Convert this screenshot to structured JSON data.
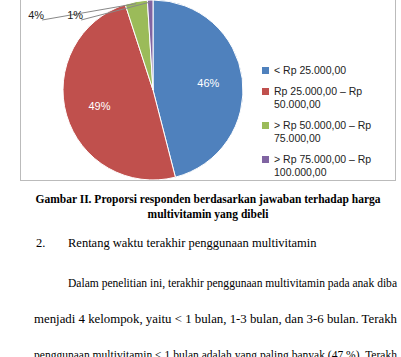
{
  "chart_data": {
    "type": "pie",
    "categories": [
      "< Rp 25.000,00",
      "Rp 25.000,00 – Rp 50.000,00",
      "> Rp 50.000,00 – Rp 75.000,00",
      "> Rp 75.000,00 – Rp 100.000,00"
    ],
    "values": [
      46,
      49,
      4,
      1
    ],
    "value_labels": [
      "46%",
      "49%",
      "4%",
      "1%"
    ],
    "colors": [
      "#4f81bd",
      "#c0504d",
      "#9bbb59",
      "#8064a2"
    ],
    "data_labels": true,
    "legend": "right"
  },
  "caption": [
    "Gambar II. Proporsi responden berdasarkan jawaban terhadap harga",
    "multivitamin yang dibeli"
  ],
  "section": {
    "number": "2.",
    "title": "Rentang waktu terakhir penggunaan multivitamin"
  },
  "paragraph": [
    "Dalam penelitian ini, terakhir penggunaan multivitamin pada anak diba",
    "menjadi 4 kelompok, yaitu < 1 bulan, 1-3 bulan, dan 3-6 bulan. Terakh",
    "penggunaan multivitamin < 1 bulan adalah yang paling banyak (47 %). Terakh"
  ]
}
